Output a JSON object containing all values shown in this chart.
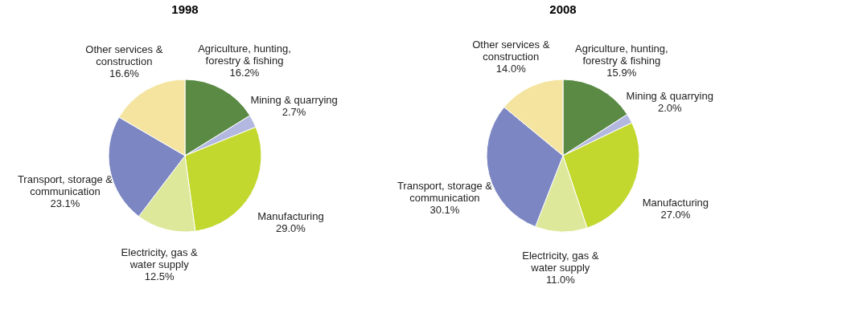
{
  "chart_data": [
    {
      "type": "pie",
      "title": "1998",
      "categories": [
        "Agriculture, hunting, forestry & fishing",
        "Mining & quarrying",
        "Manufacturing",
        "Electricity, gas & water supply",
        "Transport, storage & communication",
        "Other services & construction"
      ],
      "values": [
        16.2,
        2.7,
        29.0,
        12.5,
        23.1,
        16.6
      ],
      "value_labels": [
        "16.2%",
        "2.7%",
        "29.0%",
        "12.5%",
        "23.1%",
        "16.6%"
      ],
      "colors": [
        "#5a8a44",
        "#b3b8e0",
        "#c2d82e",
        "#dde89a",
        "#7b86c2",
        "#f4e4a0"
      ],
      "legend": false
    },
    {
      "type": "pie",
      "title": "2008",
      "categories": [
        "Agriculture, hunting, forestry & fishing",
        "Mining & quarrying",
        "Manufacturing",
        "Electricity, gas & water supply",
        "Transport, storage & communication",
        "Other services & construction"
      ],
      "values": [
        15.9,
        2.0,
        27.0,
        11.0,
        30.1,
        14.0
      ],
      "value_labels": [
        "15.9%",
        "2.0%",
        "27.0%",
        "11.0%",
        "30.1%",
        "14.0%"
      ],
      "colors": [
        "#5a8a44",
        "#b3b8e0",
        "#c2d82e",
        "#dde89a",
        "#7b86c2",
        "#f4e4a0"
      ],
      "legend": false
    }
  ]
}
